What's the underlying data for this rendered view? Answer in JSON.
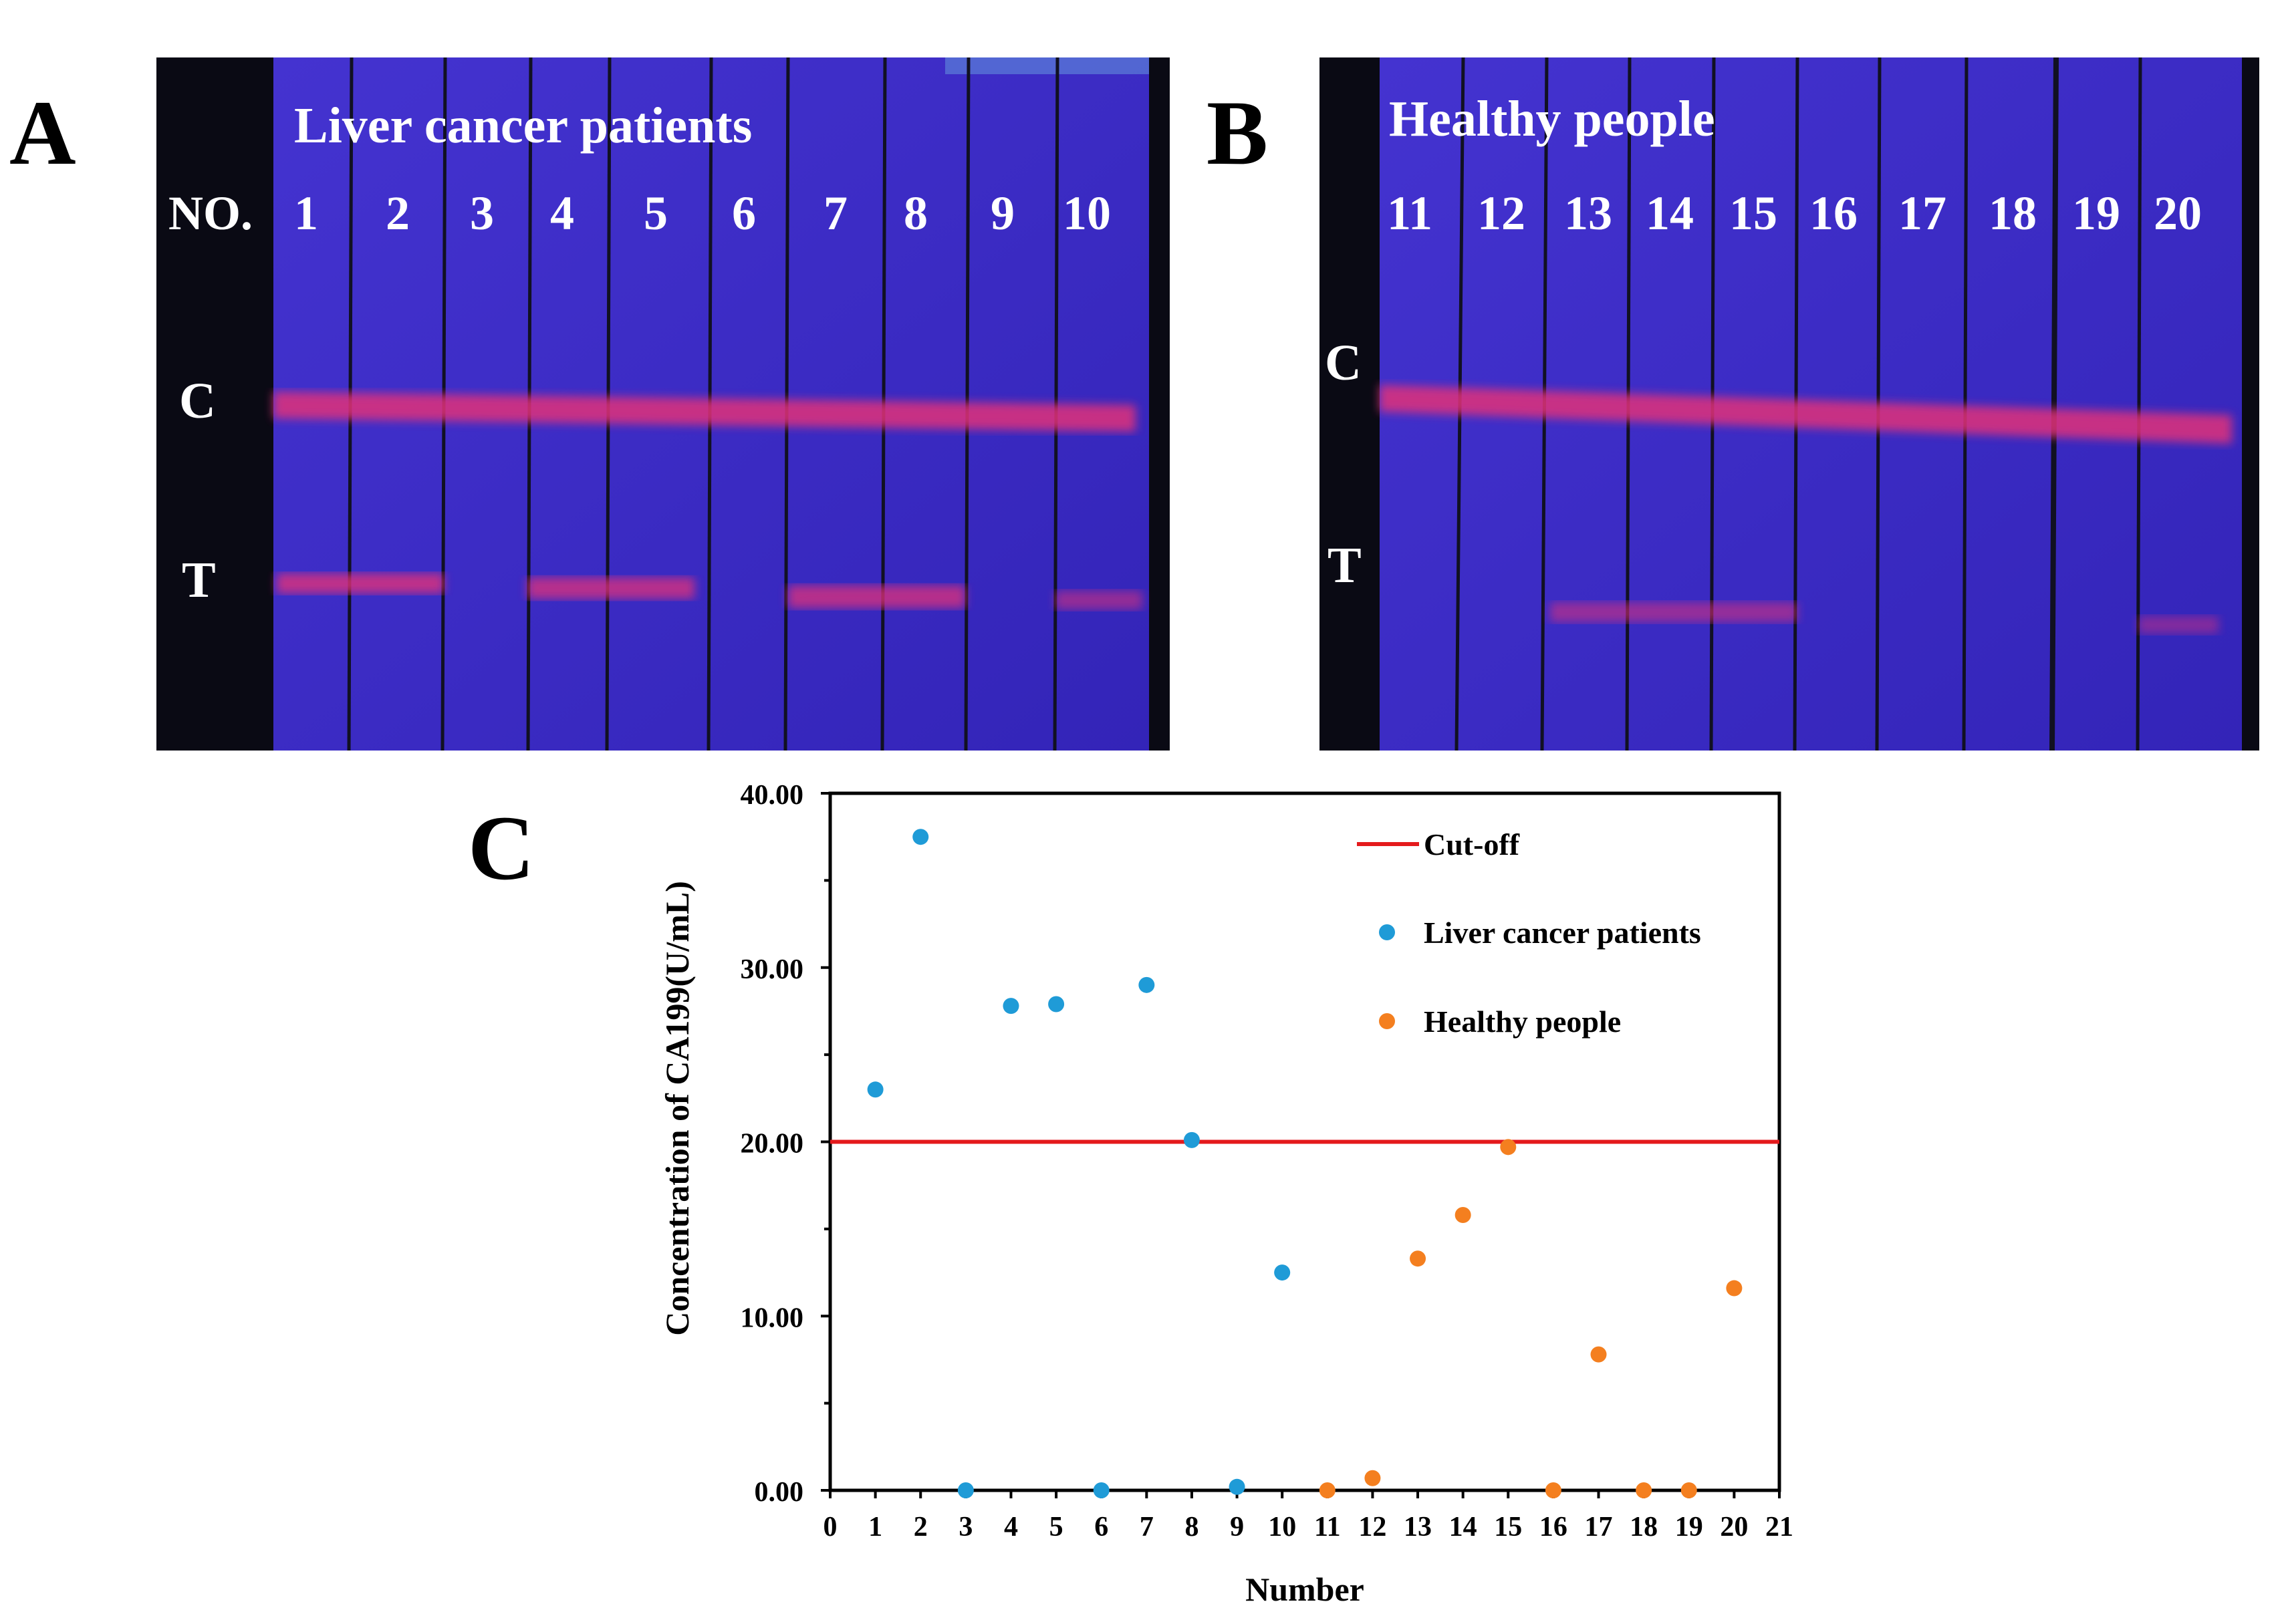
{
  "panels": {
    "a": {
      "letter": "A",
      "title": "Liver cancer patients",
      "no_label": "NO.",
      "lanes": [
        "1",
        "2",
        "3",
        "4",
        "5",
        "6",
        "7",
        "8",
        "9",
        "10"
      ],
      "c_label": "C",
      "t_label": "T"
    },
    "b": {
      "letter": "B",
      "title": "Healthy people",
      "lanes": [
        "11",
        "12",
        "13",
        "14",
        "15",
        "16",
        "17",
        "18",
        "19",
        "20"
      ],
      "c_label": "C",
      "t_label": "T"
    },
    "c": {
      "letter": "C"
    }
  },
  "colors": {
    "strip_background": "#3a2cc4",
    "strip_dark_edge": "#0b0b1a",
    "band_color": "#e0307a",
    "cutoff_color": "#e41a1c",
    "liver_color": "#1f9bd7",
    "healthy_color": "#f47f1f"
  },
  "chart_data": {
    "type": "scatter",
    "title": "",
    "xlabel": "Number",
    "ylabel": "Concentration  of CA199(U/mL)",
    "xlim": [
      0,
      21
    ],
    "ylim": [
      0,
      40
    ],
    "x_ticks": [
      "0",
      "1",
      "2",
      "3",
      "4",
      "5",
      "6",
      "7",
      "8",
      "9",
      "10",
      "11",
      "12",
      "13",
      "14",
      "15",
      "16",
      "17",
      "18",
      "19",
      "20",
      "21"
    ],
    "y_ticks": [
      "0.00",
      "10.00",
      "20.00",
      "30.00",
      "40.00"
    ],
    "y_tick_values": [
      0,
      10,
      20,
      30,
      40
    ],
    "cutoff": {
      "name": "Cut-off",
      "value": 20
    },
    "legend_position": "top-right",
    "series": [
      {
        "name": "Liver cancer patients",
        "color": "#1f9bd7",
        "x": [
          1,
          2,
          3,
          4,
          5,
          6,
          7,
          8,
          9,
          10
        ],
        "y": [
          23.0,
          37.5,
          0.0,
          27.8,
          27.9,
          0.0,
          29.0,
          20.1,
          0.2,
          12.5
        ]
      },
      {
        "name": "Healthy people",
        "color": "#f47f1f",
        "x": [
          11,
          12,
          13,
          14,
          15,
          16,
          17,
          18,
          19,
          20
        ],
        "y": [
          0.0,
          0.7,
          13.3,
          15.8,
          19.7,
          0.0,
          7.8,
          0.0,
          0.0,
          11.6
        ]
      }
    ]
  }
}
